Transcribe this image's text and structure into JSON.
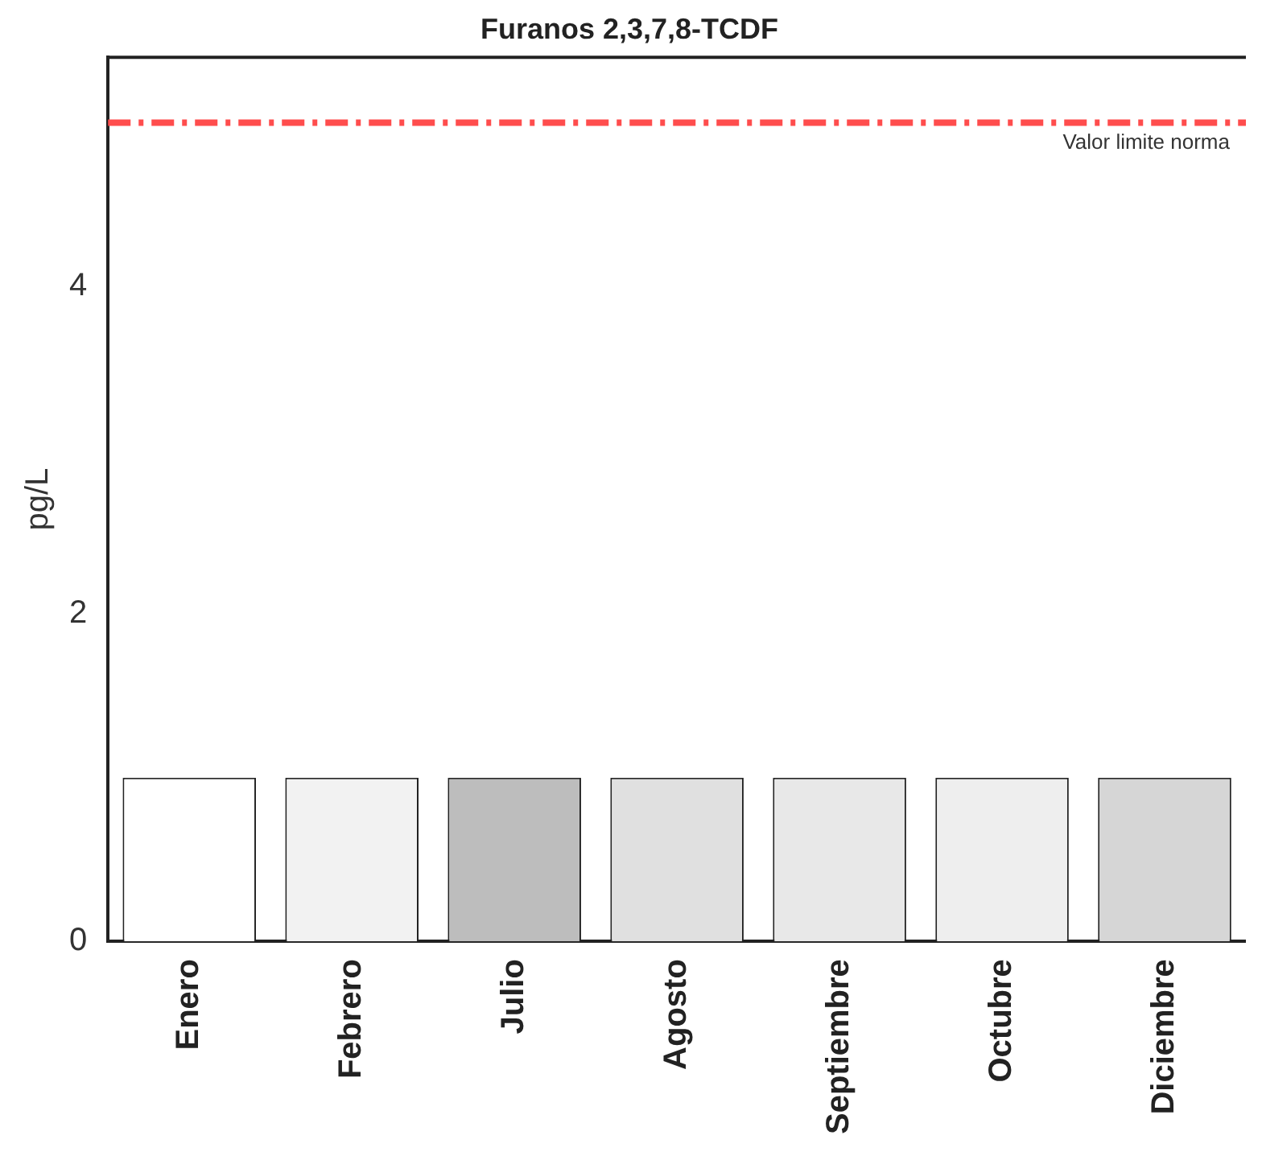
{
  "chart_data": {
    "type": "bar",
    "title": "Furanos 2,3,7,8-TCDF",
    "ylabel": "pg/L",
    "categories": [
      "Enero",
      "Febrero",
      "Julio",
      "Agosto",
      "Septiembre",
      "Octubre",
      "Diciembre"
    ],
    "values": [
      1,
      1,
      1,
      1,
      1,
      1,
      1
    ],
    "colors": [
      "#ffffff",
      "#f2f2f2",
      "#bdbdbd",
      "#e0e0e0",
      "#e8e8e8",
      "#eeeeee",
      "#d6d6d6"
    ],
    "ylim": [
      0,
      5.4
    ],
    "yticks": [
      0,
      2,
      4
    ],
    "ref_lines": [
      {
        "axis": "y",
        "value": 5,
        "label": "Valor limite norma",
        "color": "#ff4d4d",
        "line_style": "dashed"
      }
    ],
    "grid": false,
    "legend": false
  }
}
